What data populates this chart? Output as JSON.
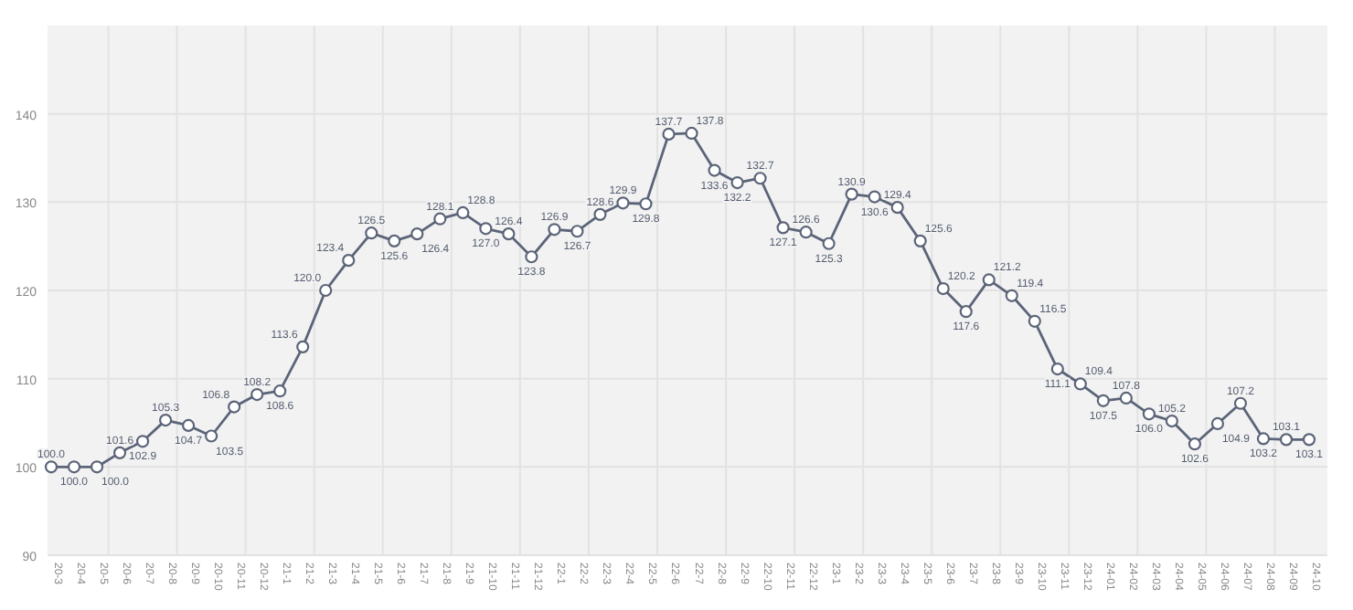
{
  "chart_data": {
    "type": "line",
    "categories": [
      "20-3",
      "20-4",
      "20-5",
      "20-6",
      "20-7",
      "20-8",
      "20-9",
      "20-10",
      "20-11",
      "20-12",
      "21-1",
      "21-2",
      "21-3",
      "21-4",
      "21-5",
      "21-6",
      "21-7",
      "21-8",
      "21-9",
      "21-10",
      "21-11",
      "21-12",
      "22-1",
      "22-2",
      "22-3",
      "22-4",
      "22-5",
      "22-6",
      "22-7",
      "22-8",
      "22-9",
      "22-10",
      "22-11",
      "22-12",
      "23-1",
      "23-2",
      "23-3",
      "23-4",
      "23-5",
      "23-6",
      "23-7",
      "23-8",
      "23-9",
      "23-10",
      "23-11",
      "23-12",
      "24-01",
      "24-02",
      "24-03",
      "24-04",
      "24-05",
      "24-06",
      "24-07",
      "24-08",
      "24-09",
      "24-10"
    ],
    "series": [
      {
        "color": "#5b6478",
        "values": [
          100.0,
          100.0,
          100.0,
          101.6,
          102.9,
          105.3,
          104.7,
          103.5,
          106.8,
          108.2,
          108.6,
          113.6,
          120.0,
          123.4,
          126.5,
          125.6,
          126.4,
          128.1,
          128.8,
          127.0,
          126.4,
          123.8,
          126.9,
          126.7,
          128.6,
          129.9,
          129.8,
          137.7,
          137.8,
          133.6,
          132.2,
          132.7,
          127.1,
          126.6,
          125.3,
          130.9,
          130.6,
          129.4,
          125.6,
          120.2,
          117.6,
          121.2,
          119.4,
          116.5,
          111.1,
          109.4,
          107.5,
          107.8,
          106.0,
          105.2,
          102.6,
          104.9,
          107.2,
          103.2,
          103.1,
          103.1
        ],
        "value_labels": [
          "100.0",
          "100.0",
          "100.0",
          "101.6",
          "102.9",
          "105.3",
          "104.7",
          "103.5",
          "106.8",
          "108.2",
          "108.6",
          "113.6",
          "120.0",
          "123.4",
          "126.5",
          "125.6",
          "126.4",
          "128.1",
          "128.8",
          "127.0",
          "126.4",
          "123.8",
          "126.9",
          "126.7",
          "128.6",
          "129.9",
          "129.8",
          "137.7",
          "137.8",
          "133.6",
          "132.2",
          "132.7",
          "127.1",
          "126.6",
          "125.3",
          "130.9",
          "130.6",
          "129.4",
          "125.6",
          "120.2",
          "117.6",
          "121.2",
          "119.4",
          "116.5",
          "111.1",
          "109.4",
          "107.5",
          "107.8",
          "106.0",
          "105.2",
          "102.6",
          "104.9",
          "107.2",
          "103.2",
          "103.1",
          "103.1"
        ]
      }
    ],
    "ylim": [
      90,
      150
    ],
    "yticks": [
      90,
      100,
      110,
      120,
      130,
      140
    ],
    "grid": true,
    "marker": "circle",
    "line_style": "solid",
    "data_labels": true
  }
}
